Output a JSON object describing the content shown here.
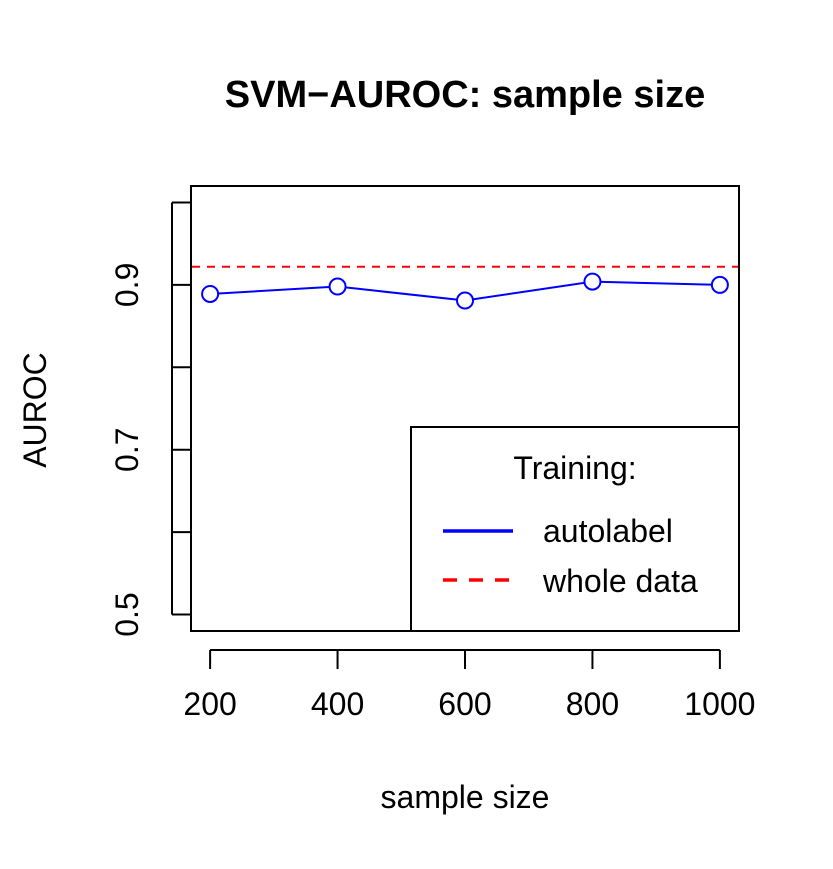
{
  "chart_data": {
    "type": "line",
    "title": "SVM−AUROC: sample size",
    "xlabel": "sample size",
    "ylabel": "AUROC",
    "x": [
      200,
      400,
      600,
      800,
      1000
    ],
    "x_tick_labels": [
      "200",
      "400",
      "600",
      "800",
      "1000"
    ],
    "y_tick_labels": [
      "0.5",
      "0.7",
      "0.9"
    ],
    "y_ticks_all": [
      0.5,
      0.6,
      0.7,
      0.8,
      0.9,
      1.0
    ],
    "xlim": [
      170,
      1030
    ],
    "ylim": [
      0.48,
      1.02
    ],
    "series": [
      {
        "name": "autolabel",
        "color": "#0000ff",
        "values": [
          0.889,
          0.898,
          0.881,
          0.904,
          0.9
        ],
        "marker": "open-circle",
        "line": "solid"
      }
    ],
    "hlines": [
      {
        "name": "whole data",
        "y": 0.922,
        "color": "#ff0000",
        "line": "dashed"
      }
    ],
    "legend": {
      "title": "Training:",
      "placement": "bottom-right",
      "entries": [
        {
          "label": "autolabel",
          "color": "#0000ff",
          "line": "solid"
        },
        {
          "label": "whole data",
          "color": "#ff0000",
          "line": "dashed"
        }
      ]
    },
    "grid": false
  }
}
